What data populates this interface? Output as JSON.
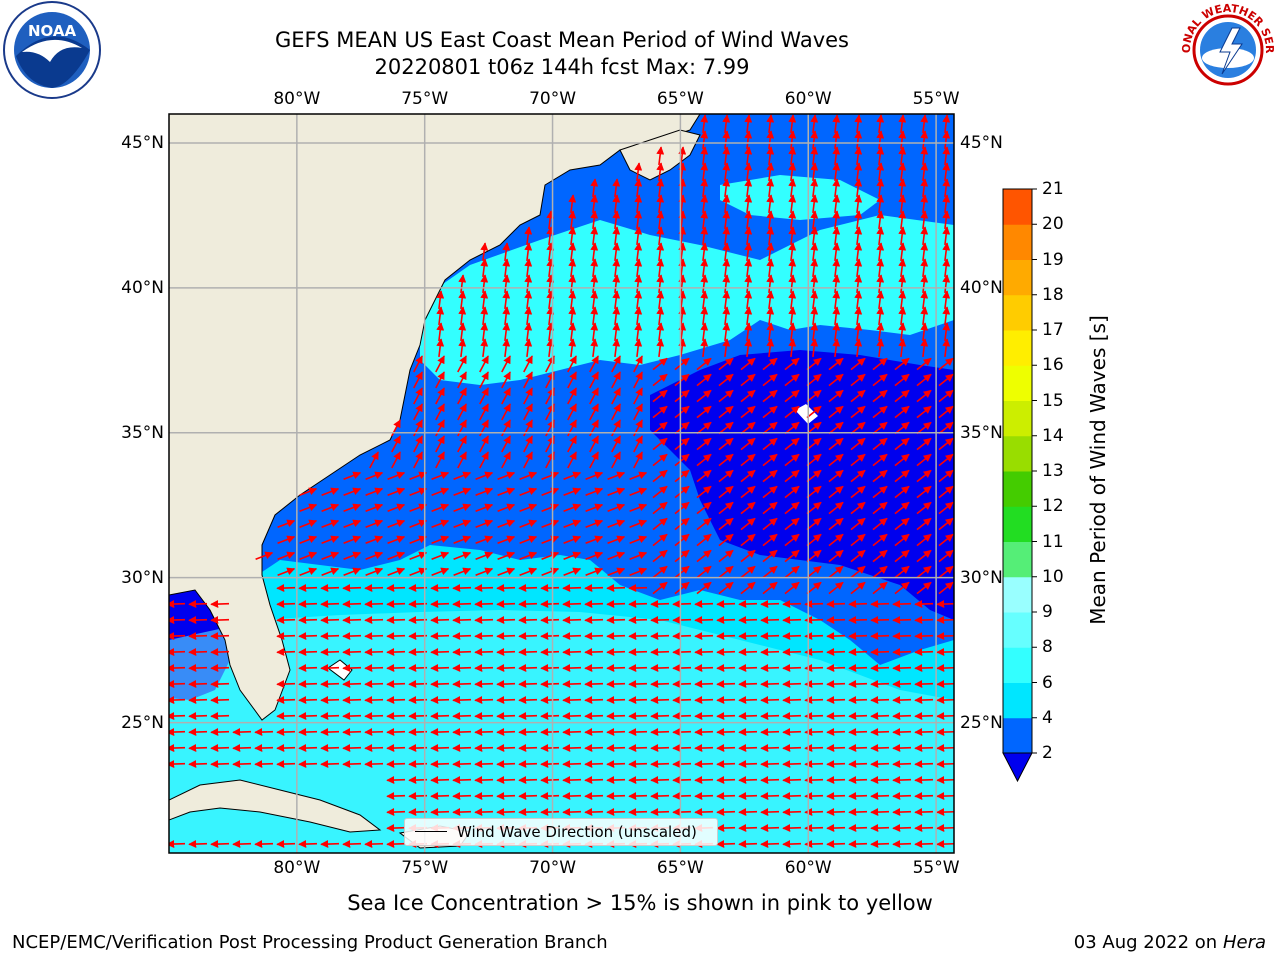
{
  "title": {
    "line1": "GEFS MEAN US East Coast Mean Period of Wind Waves",
    "line2": "20220801 t06z 144h fcst   Max: 7.99"
  },
  "logos": {
    "left": "noaa-logo",
    "right": "national-weather-service-logo",
    "left_text": "NOAA",
    "right_text": "NATIONAL WEATHER SERVICE"
  },
  "map": {
    "lon_range": [
      -85.0,
      -54.3
    ],
    "lat_range": [
      20.5,
      46.0
    ],
    "lon_ticks": [
      {
        "value": -80,
        "label": "80°W"
      },
      {
        "value": -75,
        "label": "75°W"
      },
      {
        "value": -70,
        "label": "70°W"
      },
      {
        "value": -65,
        "label": "65°W"
      },
      {
        "value": -60,
        "label": "60°W"
      },
      {
        "value": -55,
        "label": "55°W"
      }
    ],
    "lat_ticks": [
      {
        "value": 45,
        "label": "45°N"
      },
      {
        "value": 40,
        "label": "40°N"
      },
      {
        "value": 35,
        "label": "35°N"
      },
      {
        "value": 30,
        "label": "30°N"
      },
      {
        "value": 25,
        "label": "25°N"
      }
    ],
    "grid": true,
    "land_color": "#efecdc",
    "arrow_color": "#ff0000",
    "legend_label": "Wind Wave Direction (unscaled)"
  },
  "colorbar": {
    "label": "Mean Period of Wind Waves [s]",
    "ticks": [
      "2",
      "4",
      "6",
      "8",
      "9",
      "10",
      "11",
      "12",
      "13",
      "14",
      "15",
      "16",
      "17",
      "18",
      "19",
      "20",
      "21"
    ],
    "colors": [
      "#0066ff",
      "#00e6ff",
      "#33ffff",
      "#66ffff",
      "#99ffff",
      "#55ee77",
      "#22dd22",
      "#44cc00",
      "#99dd00",
      "#ccee00",
      "#eeff00",
      "#ffee00",
      "#ffcc00",
      "#ffaa00",
      "#ff8800",
      "#ff5500",
      "#ff2200",
      "#ff0000"
    ],
    "under_color": "#0000ee",
    "extend": "min"
  },
  "footer": {
    "note": "Sea Ice Concentration > 15% is shown in pink to yellow",
    "left": "NCEP/EMC/Verification Post Processing Product Generation Branch",
    "date": "03 Aug 2022 on",
    "machine": "Hera"
  }
}
